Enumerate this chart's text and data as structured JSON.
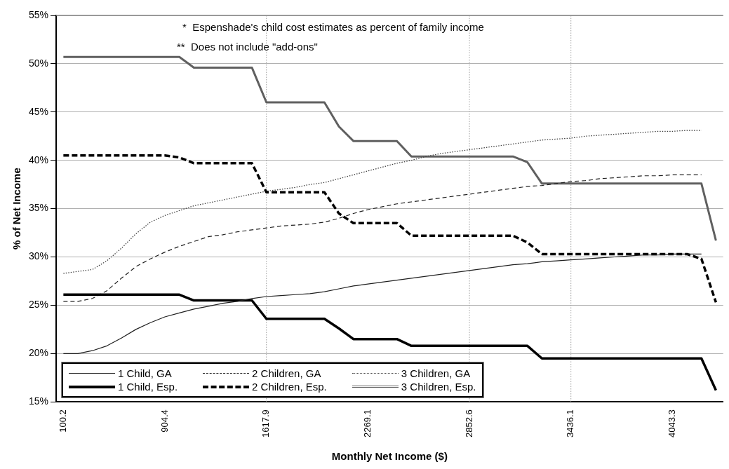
{
  "chart_data": {
    "type": "line",
    "xlabel": "Monthly Net Income ($)",
    "ylabel": "% of Net Income",
    "annotations": [
      "*  Espenshade's child cost estimates as percent of family income",
      "**  Does not include \"add-ons\""
    ],
    "categories": [
      "100.2",
      null,
      null,
      null,
      null,
      null,
      null,
      "904.4",
      null,
      null,
      null,
      null,
      null,
      null,
      "1617.9",
      null,
      null,
      null,
      null,
      null,
      null,
      "2269.1",
      null,
      null,
      null,
      null,
      null,
      null,
      "2852.6",
      null,
      null,
      null,
      null,
      null,
      null,
      "3436.1",
      null,
      null,
      null,
      null,
      null,
      null,
      "4043.3",
      null,
      null,
      null
    ],
    "ylim": [
      15,
      55
    ],
    "yticks": [
      {
        "value": 15,
        "label": "15%"
      },
      {
        "value": 20,
        "label": "20%"
      },
      {
        "value": 25,
        "label": "25%"
      },
      {
        "value": 30,
        "label": "30%"
      },
      {
        "value": 35,
        "label": "35%"
      },
      {
        "value": 40,
        "label": "40%"
      },
      {
        "value": 45,
        "label": "45%"
      },
      {
        "value": 50,
        "label": "50%"
      },
      {
        "value": 55,
        "label": "55%"
      }
    ],
    "grid": "y",
    "legend": "bottom left",
    "marker": "none",
    "ref_lines": [
      {
        "axis": "x",
        "value": "1617.9",
        "color": "#a0a0a0",
        "line_style": "dotted"
      },
      {
        "axis": "x",
        "value": "2852.6",
        "color": "#a0a0a0",
        "line_style": "dotted"
      },
      {
        "axis": "x",
        "value": "3436.1",
        "color": "#a0a0a0",
        "line_style": "dotted"
      }
    ],
    "series": [
      {
        "name": "1 Child, GA",
        "color": "#202020",
        "line_style": "solid",
        "values": [
          20.0,
          20.0,
          20.3,
          20.8,
          21.6,
          22.5,
          23.2,
          23.8,
          24.2,
          24.6,
          24.9,
          25.2,
          25.4,
          25.7,
          25.9,
          26.0,
          26.1,
          26.2,
          26.4,
          26.7,
          27.0,
          27.2,
          27.4,
          27.6,
          27.8,
          28.0,
          28.2,
          28.4,
          28.6,
          28.8,
          29.0,
          29.2,
          29.3,
          29.5,
          29.6,
          29.7,
          29.8,
          29.9,
          30.0,
          30.1,
          30.2,
          30.2,
          30.3,
          30.3,
          30.3,
          null
        ]
      },
      {
        "name": "1 Child, Esp.",
        "color": "#000000",
        "line_style": "solid",
        "values": [
          26.1,
          26.1,
          26.1,
          26.1,
          26.1,
          26.1,
          26.1,
          26.1,
          26.1,
          25.5,
          25.5,
          25.5,
          25.5,
          25.5,
          23.6,
          23.6,
          23.6,
          23.6,
          23.6,
          22.6,
          21.5,
          21.5,
          21.5,
          21.5,
          20.8,
          20.8,
          20.8,
          20.8,
          20.8,
          20.8,
          20.8,
          20.8,
          20.8,
          19.5,
          19.5,
          19.5,
          19.5,
          19.5,
          19.5,
          19.5,
          19.5,
          19.5,
          19.5,
          19.5,
          19.5,
          16.2
        ]
      },
      {
        "name": "2 Children, GA",
        "color": "#202020",
        "line_style": "dashed",
        "values": [
          25.4,
          25.4,
          25.7,
          26.5,
          27.8,
          29.0,
          29.8,
          30.5,
          31.1,
          31.6,
          32.1,
          32.3,
          32.6,
          32.8,
          33.0,
          33.2,
          33.3,
          33.4,
          33.6,
          34.0,
          34.5,
          34.9,
          35.2,
          35.5,
          35.7,
          35.9,
          36.1,
          36.3,
          36.5,
          36.7,
          36.9,
          37.1,
          37.3,
          37.4,
          37.6,
          37.8,
          37.9,
          38.1,
          38.2,
          38.3,
          38.4,
          38.4,
          38.5,
          38.5,
          38.5,
          null
        ]
      },
      {
        "name": "2 Children, Esp.",
        "color": "#000000",
        "line_style": "dashed",
        "values": [
          40.5,
          40.5,
          40.5,
          40.5,
          40.5,
          40.5,
          40.5,
          40.5,
          40.3,
          39.7,
          39.7,
          39.7,
          39.7,
          39.7,
          36.7,
          36.7,
          36.7,
          36.7,
          36.7,
          34.5,
          33.5,
          33.5,
          33.5,
          33.5,
          32.2,
          32.2,
          32.2,
          32.2,
          32.2,
          32.2,
          32.2,
          32.2,
          31.5,
          30.3,
          30.3,
          30.3,
          30.3,
          30.3,
          30.3,
          30.3,
          30.3,
          30.3,
          30.3,
          30.3,
          29.8,
          25.3
        ]
      },
      {
        "name": "3 Children, GA",
        "color": "#404040",
        "line_style": "dotted",
        "values": [
          28.3,
          28.5,
          28.7,
          29.6,
          30.9,
          32.4,
          33.6,
          34.3,
          34.8,
          35.3,
          35.6,
          35.9,
          36.2,
          36.5,
          36.8,
          37.0,
          37.2,
          37.5,
          37.7,
          38.1,
          38.5,
          38.9,
          39.3,
          39.7,
          40.0,
          40.4,
          40.7,
          40.9,
          41.1,
          41.3,
          41.5,
          41.7,
          41.9,
          42.1,
          42.2,
          42.3,
          42.5,
          42.6,
          42.7,
          42.8,
          42.9,
          43.0,
          43.0,
          43.1,
          43.1,
          null
        ]
      },
      {
        "name": "3 Children, Esp.",
        "color": "#606060",
        "line_style": "solid",
        "values": [
          50.7,
          50.7,
          50.7,
          50.7,
          50.7,
          50.7,
          50.7,
          50.7,
          50.7,
          49.6,
          49.6,
          49.6,
          49.6,
          49.6,
          46.0,
          46.0,
          46.0,
          46.0,
          46.0,
          43.5,
          42.0,
          42.0,
          42.0,
          42.0,
          40.4,
          40.4,
          40.4,
          40.4,
          40.4,
          40.4,
          40.4,
          40.4,
          39.8,
          37.6,
          37.6,
          37.6,
          37.6,
          37.6,
          37.6,
          37.6,
          37.6,
          37.6,
          37.6,
          37.6,
          37.6,
          31.7
        ]
      }
    ]
  }
}
